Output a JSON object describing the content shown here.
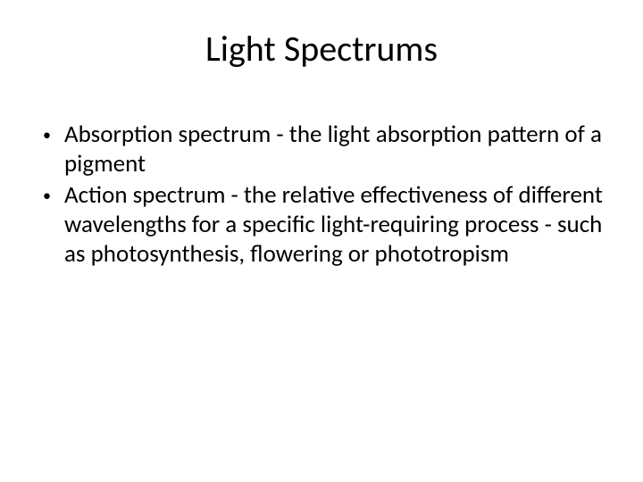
{
  "title": "Light Spectrums",
  "title_fontsize": 40,
  "body_fontsize": 27,
  "text_color": "#000000",
  "background_color": "#ffffff",
  "bullets": [
    {
      "marker": "•",
      "text": "Absorption spectrum - the light absorption pattern of a pigment"
    },
    {
      "marker": "•",
      "text": "Action spectrum - the relative effectiveness of different wavelengths for a specific light-requiring process - such as photosynthesis, flowering or phototropism"
    }
  ]
}
